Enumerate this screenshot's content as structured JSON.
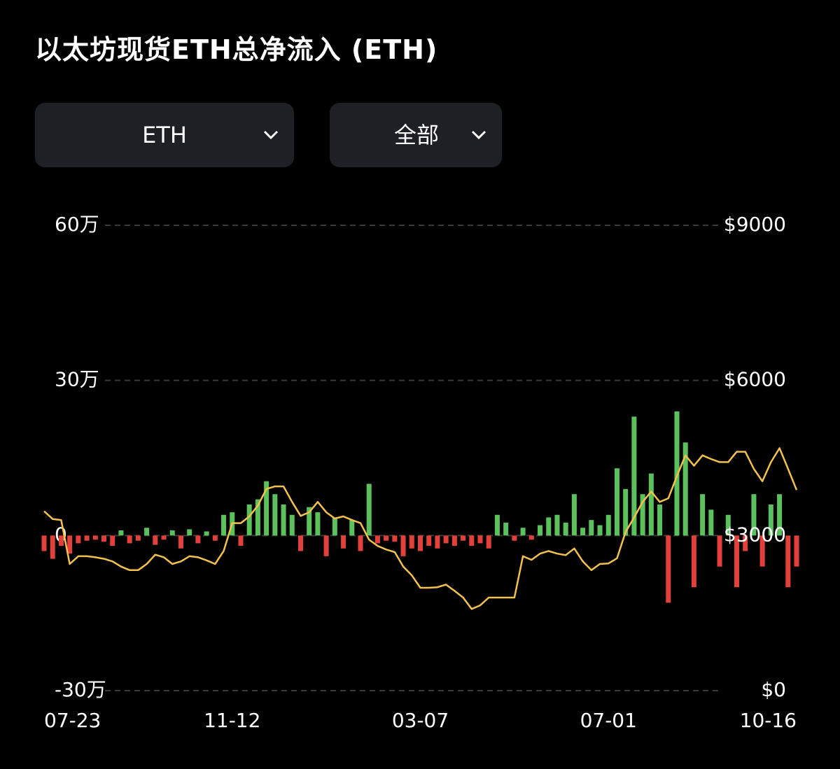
{
  "filters": {
    "asset": "ETH",
    "range": "全部"
  },
  "chart_data": {
    "type": "bar",
    "title": "以太坊现货ETH总净流入 (ETH)",
    "categories": [
      "07-23",
      null,
      null,
      null,
      null,
      null,
      null,
      null,
      null,
      null,
      null,
      null,
      null,
      null,
      null,
      null,
      null,
      null,
      null,
      null,
      null,
      null,
      "11-12",
      null,
      null,
      null,
      null,
      null,
      null,
      null,
      null,
      null,
      null,
      null,
      null,
      null,
      null,
      null,
      null,
      null,
      null,
      null,
      null,
      null,
      "03-07",
      null,
      null,
      null,
      null,
      null,
      null,
      null,
      null,
      null,
      null,
      null,
      null,
      null,
      null,
      null,
      null,
      null,
      null,
      null,
      null,
      null,
      "07-01",
      null,
      null,
      null,
      null,
      null,
      null,
      null,
      null,
      null,
      null,
      null,
      null,
      null,
      null,
      null,
      null,
      null,
      null,
      null,
      null,
      null,
      "10-16"
    ],
    "series": [
      {
        "type": "bar",
        "color_positive": "#5cc15c",
        "color_negative": "#e2413b",
        "values": [
          -30000,
          -45000,
          -20000,
          -35000,
          -15000,
          -10000,
          -8000,
          -12000,
          -20000,
          10000,
          -15000,
          -10000,
          15000,
          -18000,
          -8000,
          10000,
          -25000,
          12000,
          -15000,
          8000,
          -10000,
          40000,
          45000,
          -20000,
          60000,
          70000,
          105000,
          80000,
          60000,
          40000,
          -30000,
          55000,
          45000,
          -40000,
          35000,
          -25000,
          30000,
          -30000,
          100000,
          -15000,
          -10000,
          -12000,
          -40000,
          -25000,
          -30000,
          -20000,
          -25000,
          -15000,
          -20000,
          -10000,
          -20000,
          -15000,
          -25000,
          40000,
          25000,
          -10000,
          15000,
          -8000,
          20000,
          35000,
          40000,
          25000,
          80000,
          15000,
          30000,
          20000,
          40000,
          130000,
          90000,
          230000,
          80000,
          120000,
          60000,
          -130000,
          240000,
          180000,
          -100000,
          80000,
          50000,
          -60000,
          40000,
          -100000,
          -30000,
          80000,
          -60000,
          60000,
          80000,
          -100000,
          -60000
        ]
      },
      {
        "type": "line",
        "axis": "y2",
        "color": "#f2c14e",
        "values": [
          3470,
          3320,
          3300,
          2450,
          2600,
          2600,
          2580,
          2550,
          2500,
          2400,
          2330,
          2330,
          2450,
          2630,
          2580,
          2450,
          2500,
          2600,
          2580,
          2520,
          2450,
          2700,
          3240,
          3240,
          3370,
          3580,
          3900,
          3950,
          3950,
          3650,
          3380,
          3450,
          3650,
          3450,
          3330,
          3370,
          3300,
          3240,
          2920,
          2800,
          2730,
          2680,
          2400,
          2230,
          1990,
          1990,
          2000,
          2050,
          1930,
          1800,
          1580,
          1650,
          1800,
          1800,
          1800,
          1800,
          2600,
          2530,
          2650,
          2700,
          2650,
          2620,
          2750,
          2500,
          2330,
          2450,
          2460,
          2560,
          3070,
          3350,
          3650,
          3850,
          3650,
          3720,
          4150,
          4550,
          4350,
          4550,
          4480,
          4420,
          4420,
          4620,
          4620,
          4290,
          4050,
          4420,
          4690,
          4290,
          3880
        ]
      }
    ],
    "ylim": [
      -300000,
      600000
    ],
    "yticks": [
      {
        "value": -300000,
        "label": "-30万"
      },
      0,
      {
        "value": 300000,
        "label": "30万"
      },
      {
        "value": 600000,
        "label": "60万"
      }
    ],
    "y2lim": [
      0,
      9000
    ],
    "y2ticks": [
      {
        "value": 0,
        "label": "$0"
      },
      {
        "value": 3000,
        "label": "$3000"
      },
      {
        "value": 6000,
        "label": "$6000"
      },
      {
        "value": 9000,
        "label": "$9000"
      }
    ],
    "grid": true
  }
}
